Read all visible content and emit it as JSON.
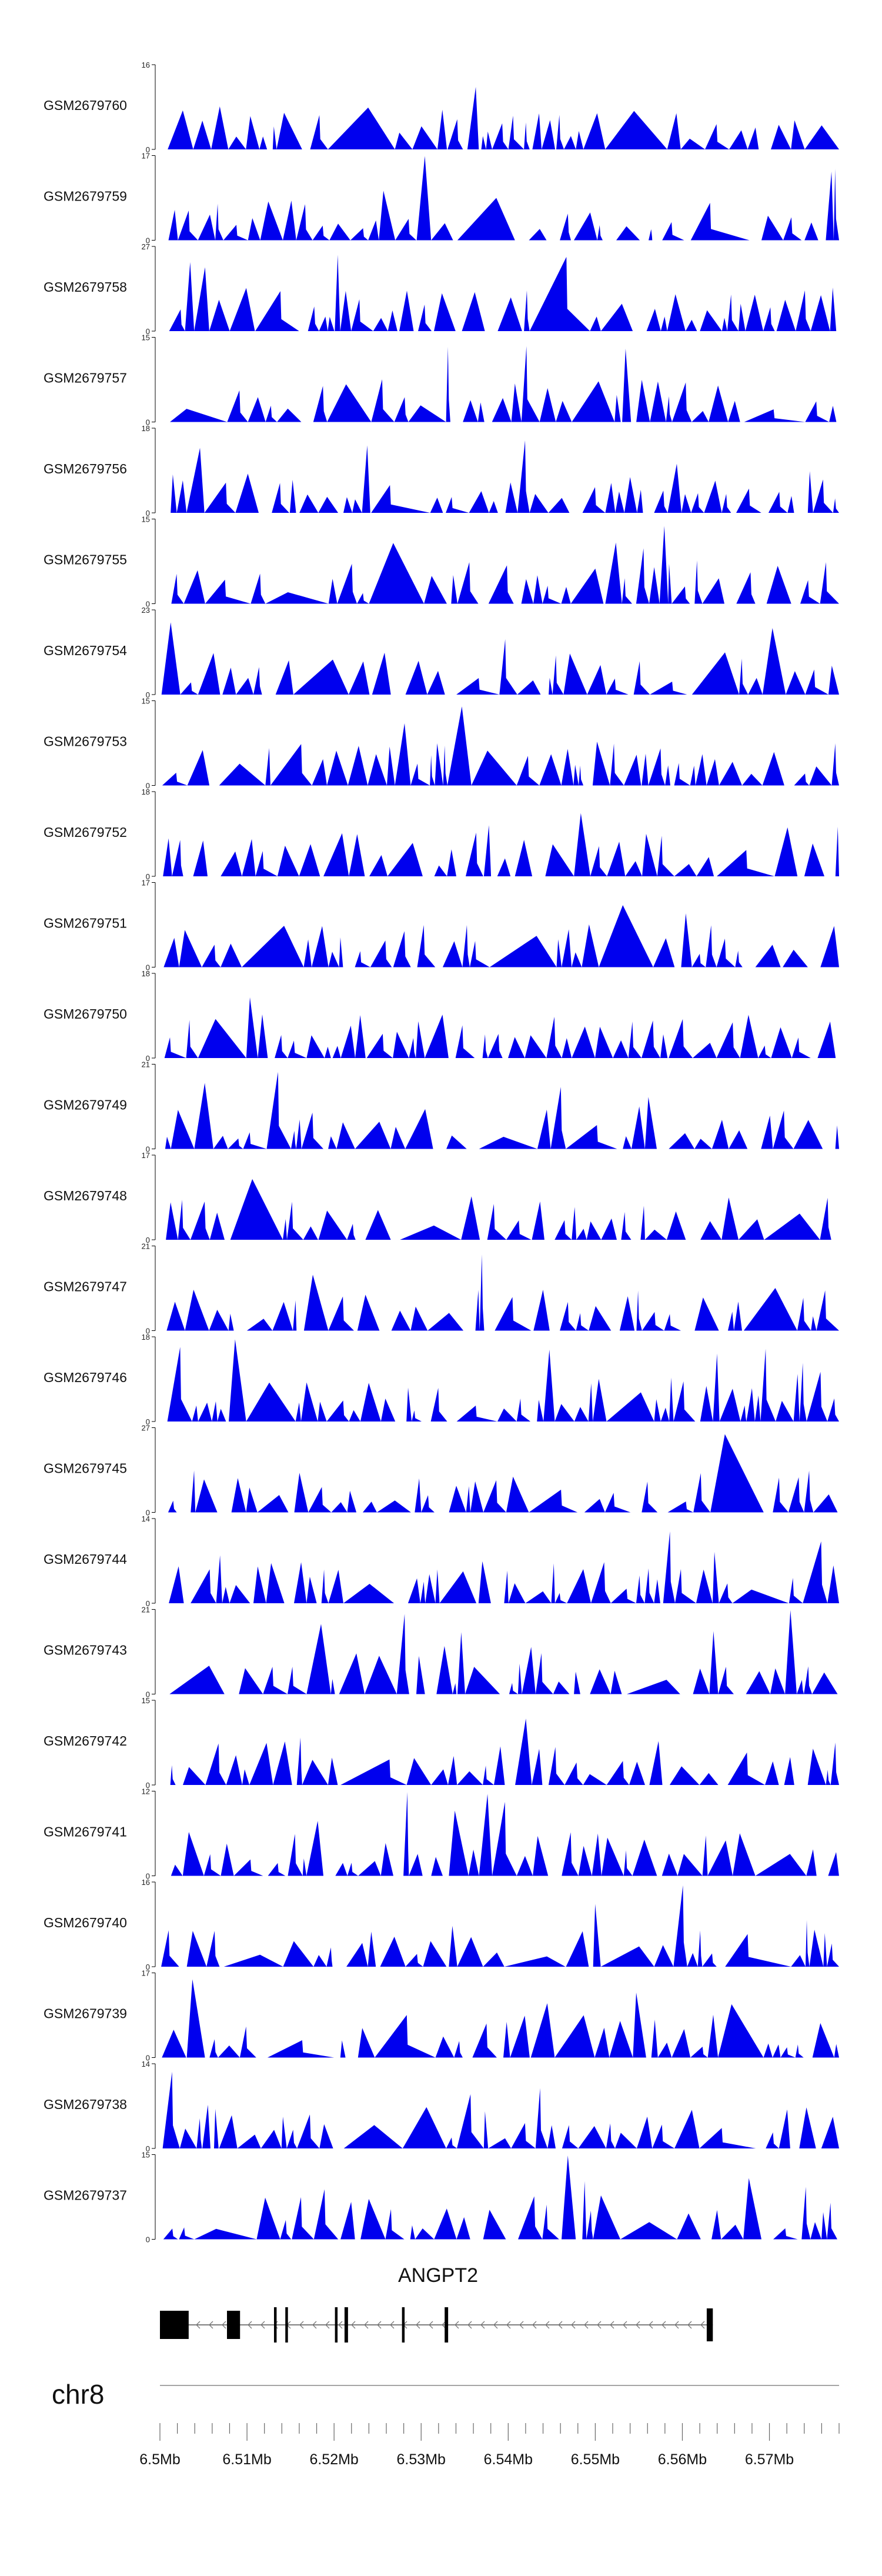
{
  "chart_data": {
    "type": "area",
    "title": "",
    "chromosome": "chr8",
    "x_range_mb": [
      6.5,
      6.578
    ],
    "axis_ticks": [
      "6.5Mb",
      "6.51Mb",
      "6.52Mb",
      "6.53Mb",
      "6.54Mb",
      "6.55Mb",
      "6.56Mb",
      "6.57Mb"
    ],
    "axis_tick_values_mb": [
      6.5,
      6.51,
      6.52,
      6.53,
      6.54,
      6.55,
      6.56,
      6.57
    ],
    "gene": {
      "name": "ANGPT2",
      "strand": "-",
      "start_mb": 6.5,
      "end_mb": 6.5635,
      "exons_mb": [
        [
          6.5,
          6.5033
        ],
        [
          6.5077,
          6.5092
        ],
        [
          6.5131,
          6.5134
        ],
        [
          6.5144,
          6.5147
        ],
        [
          6.5201,
          6.5204
        ],
        [
          6.5212,
          6.5216
        ],
        [
          6.5278,
          6.5281
        ],
        [
          6.5327,
          6.5331
        ],
        [
          6.5628,
          6.5635
        ]
      ]
    },
    "tracks": [
      {
        "name": "GSM2679760",
        "ymax": 16
      },
      {
        "name": "GSM2679759",
        "ymax": 17
      },
      {
        "name": "GSM2679758",
        "ymax": 27
      },
      {
        "name": "GSM2679757",
        "ymax": 15
      },
      {
        "name": "GSM2679756",
        "ymax": 18
      },
      {
        "name": "GSM2679755",
        "ymax": 15
      },
      {
        "name": "GSM2679754",
        "ymax": 23
      },
      {
        "name": "GSM2679753",
        "ymax": 15
      },
      {
        "name": "GSM2679752",
        "ymax": 18
      },
      {
        "name": "GSM2679751",
        "ymax": 17
      },
      {
        "name": "GSM2679750",
        "ymax": 18
      },
      {
        "name": "GSM2679749",
        "ymax": 21
      },
      {
        "name": "GSM2679748",
        "ymax": 17
      },
      {
        "name": "GSM2679747",
        "ymax": 21
      },
      {
        "name": "GSM2679746",
        "ymax": 18
      },
      {
        "name": "GSM2679745",
        "ymax": 27
      },
      {
        "name": "GSM2679744",
        "ymax": 14
      },
      {
        "name": "GSM2679743",
        "ymax": 21
      },
      {
        "name": "GSM2679742",
        "ymax": 15
      },
      {
        "name": "GSM2679741",
        "ymax": 12
      },
      {
        "name": "GSM2679740",
        "ymax": 16
      },
      {
        "name": "GSM2679739",
        "ymax": 17
      },
      {
        "name": "GSM2679738",
        "ymax": 14
      },
      {
        "name": "GSM2679737",
        "ymax": 15
      }
    ],
    "ymin": 0,
    "fill_color": "#0000ee"
  }
}
